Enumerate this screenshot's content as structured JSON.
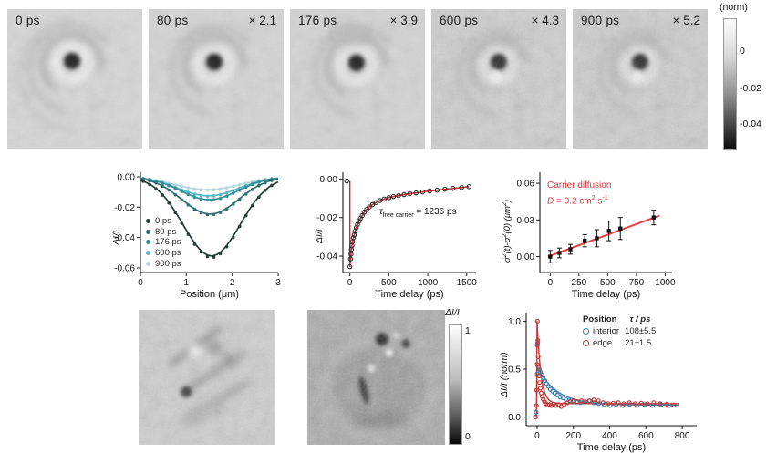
{
  "top_row": {
    "panels": [
      {
        "label": "0 ps",
        "multiplier": ""
      },
      {
        "label": "80 ps",
        "multiplier": "× 2.1"
      },
      {
        "label": "176 ps",
        "multiplier": "× 3.9"
      },
      {
        "label": "600 ps",
        "multiplier": "× 4.3"
      },
      {
        "label": "900 ps",
        "multiplier": "× 5.2"
      }
    ],
    "colorbar": {
      "title": "(norm)",
      "tick_labels": [
        "0",
        "-0.02",
        "-0.04"
      ]
    }
  },
  "bottom_row": {
    "colorbar": {
      "title": "ΔI/I",
      "tick_top": "1",
      "tick_bottom": "0"
    }
  },
  "chart_data": [
    {
      "id": "profiles",
      "type": "line",
      "title": "",
      "xlabel": "Position (μm)",
      "ylabel": "ΔI/I",
      "xlim": [
        0,
        3
      ],
      "ylim": [
        -0.063,
        0.003
      ],
      "xticks": {
        "v": [
          0,
          1,
          2,
          3
        ],
        "labels": [
          "0",
          "1",
          "2",
          "3"
        ]
      },
      "yticks": {
        "v": [
          0,
          -0.02,
          -0.04,
          -0.06
        ],
        "labels": [
          "0.00",
          "-0.02",
          "-0.04",
          "-0.06"
        ]
      },
      "legend_position": "lower-left",
      "series": [
        {
          "name": "0 ps",
          "color": "#223f3c",
          "amp": -0.052,
          "center": 1.55,
          "sigma": 0.62
        },
        {
          "name": "80 ps",
          "color": "#2d6e72",
          "amp": -0.0245,
          "center": 1.52,
          "sigma": 0.62
        },
        {
          "name": "176 ps",
          "color": "#338f9a",
          "amp": -0.015,
          "center": 1.5,
          "sigma": 0.63
        },
        {
          "name": "600 ps",
          "color": "#5cb4c5",
          "amp": -0.0125,
          "center": 1.48,
          "sigma": 0.66
        },
        {
          "name": "900 ps",
          "color": "#b4d8e1",
          "amp": -0.0085,
          "center": 1.46,
          "sigma": 0.7
        }
      ]
    },
    {
      "id": "decay",
      "type": "scatter",
      "xlabel": "Time delay (ps)",
      "ylabel": "ΔI/I",
      "xlim": [
        -90,
        1620
      ],
      "ylim": [
        -0.0485,
        0.0035
      ],
      "xticks": {
        "v": [
          0,
          500,
          1000,
          1500
        ],
        "labels": [
          "0",
          "500",
          "1000",
          "1500"
        ]
      },
      "yticks": {
        "v": [
          0,
          -0.02,
          -0.04
        ],
        "labels": [
          "0.00",
          "-0.02",
          "-0.04"
        ]
      },
      "annotation": {
        "sym": "τ",
        "sub": "free carrier",
        "rest": " = 1236 ps"
      },
      "marker_color": "#2b2b2b",
      "fit_color": "#d3252a",
      "rise": {
        "x": 0,
        "y1": -0.001,
        "y2": -0.0455
      },
      "points": [
        [
          -40,
          -0.001
        ],
        [
          0,
          -0.0455
        ],
        [
          8,
          -0.0415
        ],
        [
          14,
          -0.039
        ],
        [
          20,
          -0.0365
        ],
        [
          27,
          -0.0345
        ],
        [
          35,
          -0.0325
        ],
        [
          45,
          -0.0305
        ],
        [
          55,
          -0.029
        ],
        [
          68,
          -0.027
        ],
        [
          82,
          -0.0252
        ],
        [
          98,
          -0.0235
        ],
        [
          115,
          -0.022
        ],
        [
          135,
          -0.0205
        ],
        [
          158,
          -0.019
        ],
        [
          185,
          -0.0172
        ],
        [
          215,
          -0.0158
        ],
        [
          250,
          -0.0145
        ],
        [
          290,
          -0.0133
        ],
        [
          335,
          -0.0122
        ],
        [
          385,
          -0.0112
        ],
        [
          440,
          -0.0104
        ],
        [
          500,
          -0.0097
        ],
        [
          560,
          -0.0091
        ],
        [
          625,
          -0.0086
        ],
        [
          695,
          -0.0081
        ],
        [
          770,
          -0.0076
        ],
        [
          850,
          -0.0072
        ],
        [
          935,
          -0.0067
        ],
        [
          1025,
          -0.0062
        ],
        [
          1120,
          -0.0058
        ],
        [
          1220,
          -0.0053
        ],
        [
          1325,
          -0.0049
        ],
        [
          1435,
          -0.0044
        ],
        [
          1530,
          -0.004
        ]
      ]
    },
    {
      "id": "msd",
      "type": "scatter",
      "xlabel": "Time delay (ps)",
      "ylabel": "σ2(t)-σ2(0) (μm2)",
      "ylabel_parts": {
        "p1": "σ",
        "s1": "2",
        "p2": "(t)-σ",
        "s2": "2",
        "p3": "(0) (μm",
        "s3": "2",
        "p4": ")"
      },
      "xlim": [
        -90,
        1060
      ],
      "ylim": [
        -0.013,
        0.069
      ],
      "xticks": {
        "v": [
          0,
          250,
          500,
          750,
          1000
        ],
        "labels": [
          "0",
          "250",
          "500",
          "750",
          "1000"
        ]
      },
      "yticks": {
        "v": [
          0,
          0.03,
          0.06
        ],
        "labels": [
          "0.00",
          "0.03",
          "0.06"
        ]
      },
      "annotation": {
        "line1": "Carrier diffusion",
        "d_sym": "D",
        "d_pre": " = 0.2 cm",
        "d_sup1": "2",
        "d_mid": " s",
        "d_sup2": "-1"
      },
      "annotation_color": "#e03434",
      "marker_color": "#111111",
      "fit_color": "#e34040",
      "fit": {
        "x1": -20,
        "y1": 0.0,
        "x2": 950,
        "y2": 0.0335
      },
      "points": [
        {
          "t": 0,
          "y": 0.0,
          "e": 0.005
        },
        {
          "t": 80,
          "y": 0.003,
          "e": 0.004
        },
        {
          "t": 176,
          "y": 0.006,
          "e": 0.004
        },
        {
          "t": 300,
          "y": 0.013,
          "e": 0.005
        },
        {
          "t": 405,
          "y": 0.015,
          "e": 0.007
        },
        {
          "t": 510,
          "y": 0.021,
          "e": 0.008
        },
        {
          "t": 610,
          "y": 0.023,
          "e": 0.009
        },
        {
          "t": 900,
          "y": 0.032,
          "e": 0.006
        }
      ]
    },
    {
      "id": "kinetics",
      "type": "scatter",
      "xlabel": "Time delay (ps)",
      "ylabel": "ΔI/I (norm)",
      "xlim": [
        -60,
        880
      ],
      "ylim": [
        -0.09,
        1.09
      ],
      "xticks": {
        "v": [
          0,
          200,
          400,
          600,
          800
        ],
        "labels": [
          "0",
          "200",
          "400",
          "600",
          "800"
        ]
      },
      "yticks": {
        "v": [
          0,
          0.5,
          1.0
        ],
        "labels": [
          "0.0",
          "0.5",
          "1.0"
        ]
      },
      "legend": {
        "header_position": "Position",
        "header_tau": "τ / ps"
      },
      "series": [
        {
          "name": "interior",
          "tau": "108±5.5",
          "color": "#3d7fae",
          "fit": {
            "plateau": 0.125,
            "amp": 0.4,
            "tau": 108
          },
          "points": [
            [
              -10,
              0.0
            ],
            [
              -5,
              0.05
            ],
            [
              0,
              0.45
            ],
            [
              3,
              0.77
            ],
            [
              7,
              0.52
            ],
            [
              12,
              0.5
            ],
            [
              18,
              0.47
            ],
            [
              26,
              0.44
            ],
            [
              34,
              0.41
            ],
            [
              43,
              0.38
            ],
            [
              52,
              0.35
            ],
            [
              62,
              0.32
            ],
            [
              73,
              0.29
            ],
            [
              85,
              0.27
            ],
            [
              98,
              0.25
            ],
            [
              112,
              0.23
            ],
            [
              127,
              0.21
            ],
            [
              143,
              0.2
            ],
            [
              160,
              0.18
            ],
            [
              178,
              0.17
            ],
            [
              197,
              0.16
            ],
            [
              218,
              0.155
            ],
            [
              240,
              0.15
            ],
            [
              263,
              0.16
            ],
            [
              287,
              0.17
            ],
            [
              312,
              0.15
            ],
            [
              340,
              0.14
            ],
            [
              370,
              0.13
            ],
            [
              402,
              0.12
            ],
            [
              436,
              0.13
            ],
            [
              472,
              0.12
            ],
            [
              510,
              0.13
            ],
            [
              550,
              0.12
            ],
            [
              592,
              0.13
            ],
            [
              636,
              0.12
            ],
            [
              682,
              0.13
            ],
            [
              730,
              0.12
            ]
          ]
        },
        {
          "name": "edge",
          "tau": "21±1.5",
          "color": "#c03a38",
          "fit": {
            "plateau": 0.14,
            "amp": 0.86,
            "tau": 21
          },
          "points": [
            [
              -8,
              0.0
            ],
            [
              -4,
              0.12
            ],
            [
              -2,
              0.28
            ],
            [
              0,
              0.55
            ],
            [
              1,
              0.75
            ],
            [
              2,
              1.0
            ],
            [
              4,
              0.8
            ],
            [
              6,
              0.63
            ],
            [
              8,
              0.52
            ],
            [
              11,
              0.43
            ],
            [
              14,
              0.36
            ],
            [
              18,
              0.3
            ],
            [
              23,
              0.25
            ],
            [
              28,
              0.215
            ],
            [
              34,
              0.185
            ],
            [
              41,
              0.16
            ],
            [
              49,
              0.14
            ],
            [
              58,
              0.125
            ],
            [
              68,
              0.13
            ],
            [
              79,
              0.12
            ],
            [
              91,
              0.135
            ],
            [
              104,
              0.12
            ],
            [
              118,
              0.13
            ],
            [
              133,
              0.11
            ],
            [
              149,
              0.13
            ],
            [
              166,
              0.15
            ],
            [
              184,
              0.16
            ],
            [
              203,
              0.17
            ],
            [
              223,
              0.16
            ],
            [
              244,
              0.17
            ],
            [
              266,
              0.16
            ],
            [
              289,
              0.17
            ],
            [
              313,
              0.18
            ],
            [
              338,
              0.17
            ],
            [
              364,
              0.15
            ],
            [
              391,
              0.14
            ],
            [
              419,
              0.145
            ],
            [
              448,
              0.15
            ],
            [
              478,
              0.14
            ],
            [
              509,
              0.15
            ],
            [
              541,
              0.14
            ],
            [
              574,
              0.145
            ],
            [
              608,
              0.14
            ],
            [
              643,
              0.15
            ],
            [
              679,
              0.14
            ],
            [
              716,
              0.135
            ],
            [
              754,
              0.125
            ]
          ]
        }
      ]
    }
  ]
}
